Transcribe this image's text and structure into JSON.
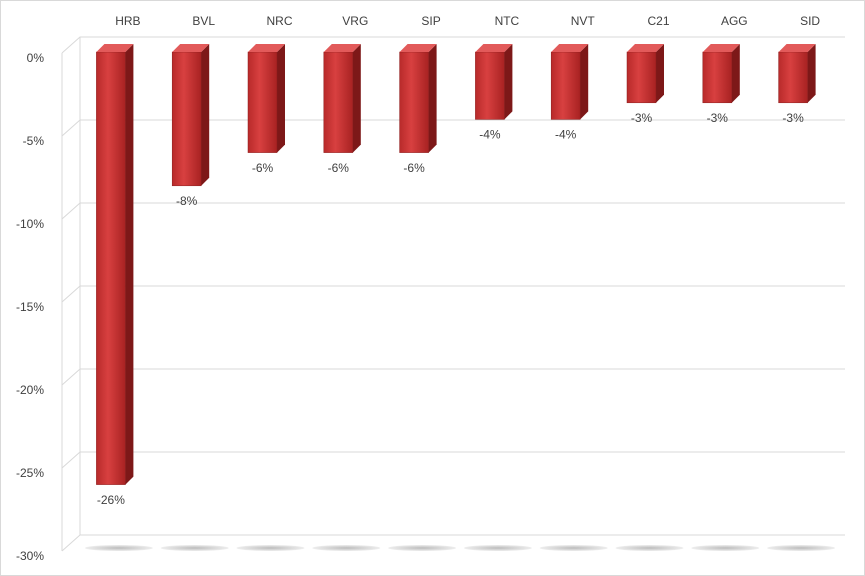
{
  "chart_data": {
    "type": "bar3d",
    "categories": [
      "HRB",
      "BVL",
      "NRC",
      "VRG",
      "SIP",
      "NTC",
      "NVT",
      "C21",
      "AGG",
      "SID"
    ],
    "values": [
      -26,
      -8,
      -6,
      -6,
      -6,
      -4,
      -4,
      -3,
      -3,
      -3
    ],
    "value_labels": [
      "-26%",
      "-8%",
      "-6%",
      "-6%",
      "-6%",
      "-4%",
      "-4%",
      "-3%",
      "-3%",
      "-3%"
    ],
    "color": "#c62f2f",
    "ylim": [
      -30,
      0
    ],
    "yticks": [
      {
        "value": 0,
        "label": "0%"
      },
      {
        "value": -5,
        "label": "-5%"
      },
      {
        "value": -10,
        "label": "-10%"
      },
      {
        "value": -15,
        "label": "-15%"
      },
      {
        "value": -20,
        "label": "-20%"
      },
      {
        "value": -25,
        "label": "-25%"
      },
      {
        "value": -30,
        "label": "-30%"
      }
    ],
    "grid": true
  }
}
